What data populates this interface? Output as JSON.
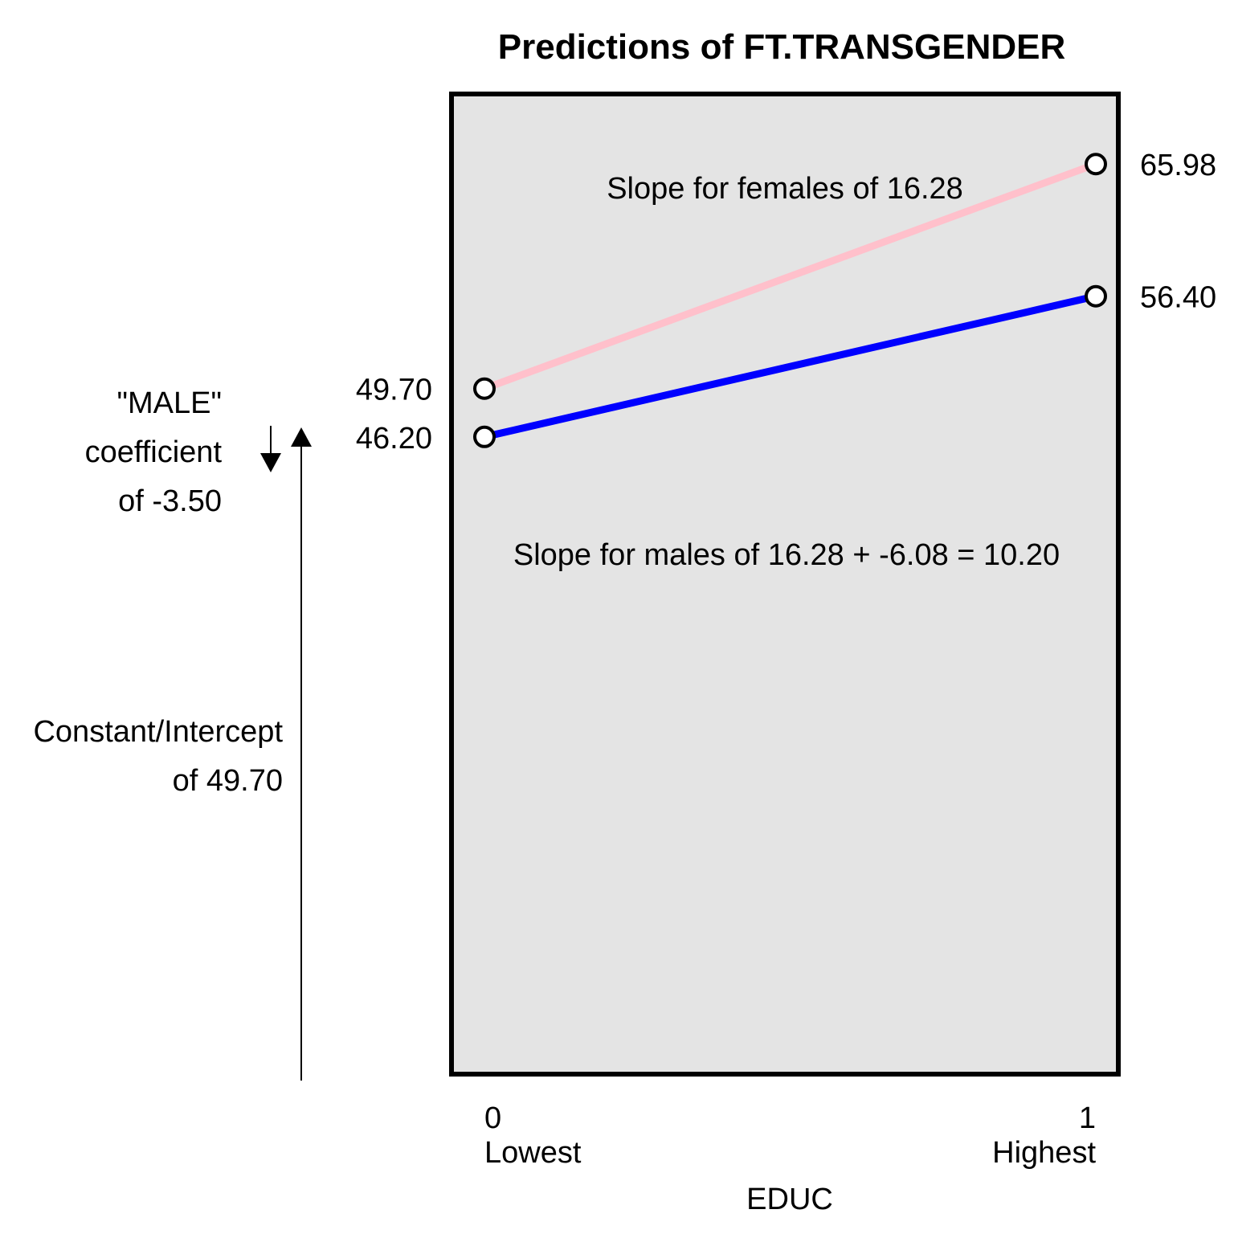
{
  "chart_data": {
    "type": "line",
    "title": "Predictions of FT.TRANSGENDER",
    "xlabel": "EDUC",
    "x": [
      0,
      1
    ],
    "xticks": [
      {
        "value": 0,
        "number": "0",
        "label": "Lowest"
      },
      {
        "value": 1,
        "number": "1",
        "label": "Highest"
      }
    ],
    "ylim": [
      0,
      71.06
    ],
    "grid": false,
    "series": [
      {
        "key": "female",
        "color": "#FFC0CB",
        "values": [
          49.7,
          65.98
        ],
        "labels": [
          "49.70",
          "65.98"
        ]
      },
      {
        "key": "male",
        "color": "#0000FF",
        "values": [
          46.2,
          56.4
        ],
        "labels": [
          "46.20",
          "56.40"
        ]
      }
    ],
    "annotations": {
      "female_slope": "Slope for females of 16.28",
      "male_slope": "Slope for males of 16.28 + -6.08 = 10.20",
      "male_coef": [
        "\"MALE\"",
        "coefficient",
        "of -3.50"
      ],
      "intercept": [
        "Constant/Intercept",
        "of 49.70"
      ]
    },
    "colors": {
      "panel_background": "#E4E4E4",
      "panel_border": "#000000"
    }
  }
}
